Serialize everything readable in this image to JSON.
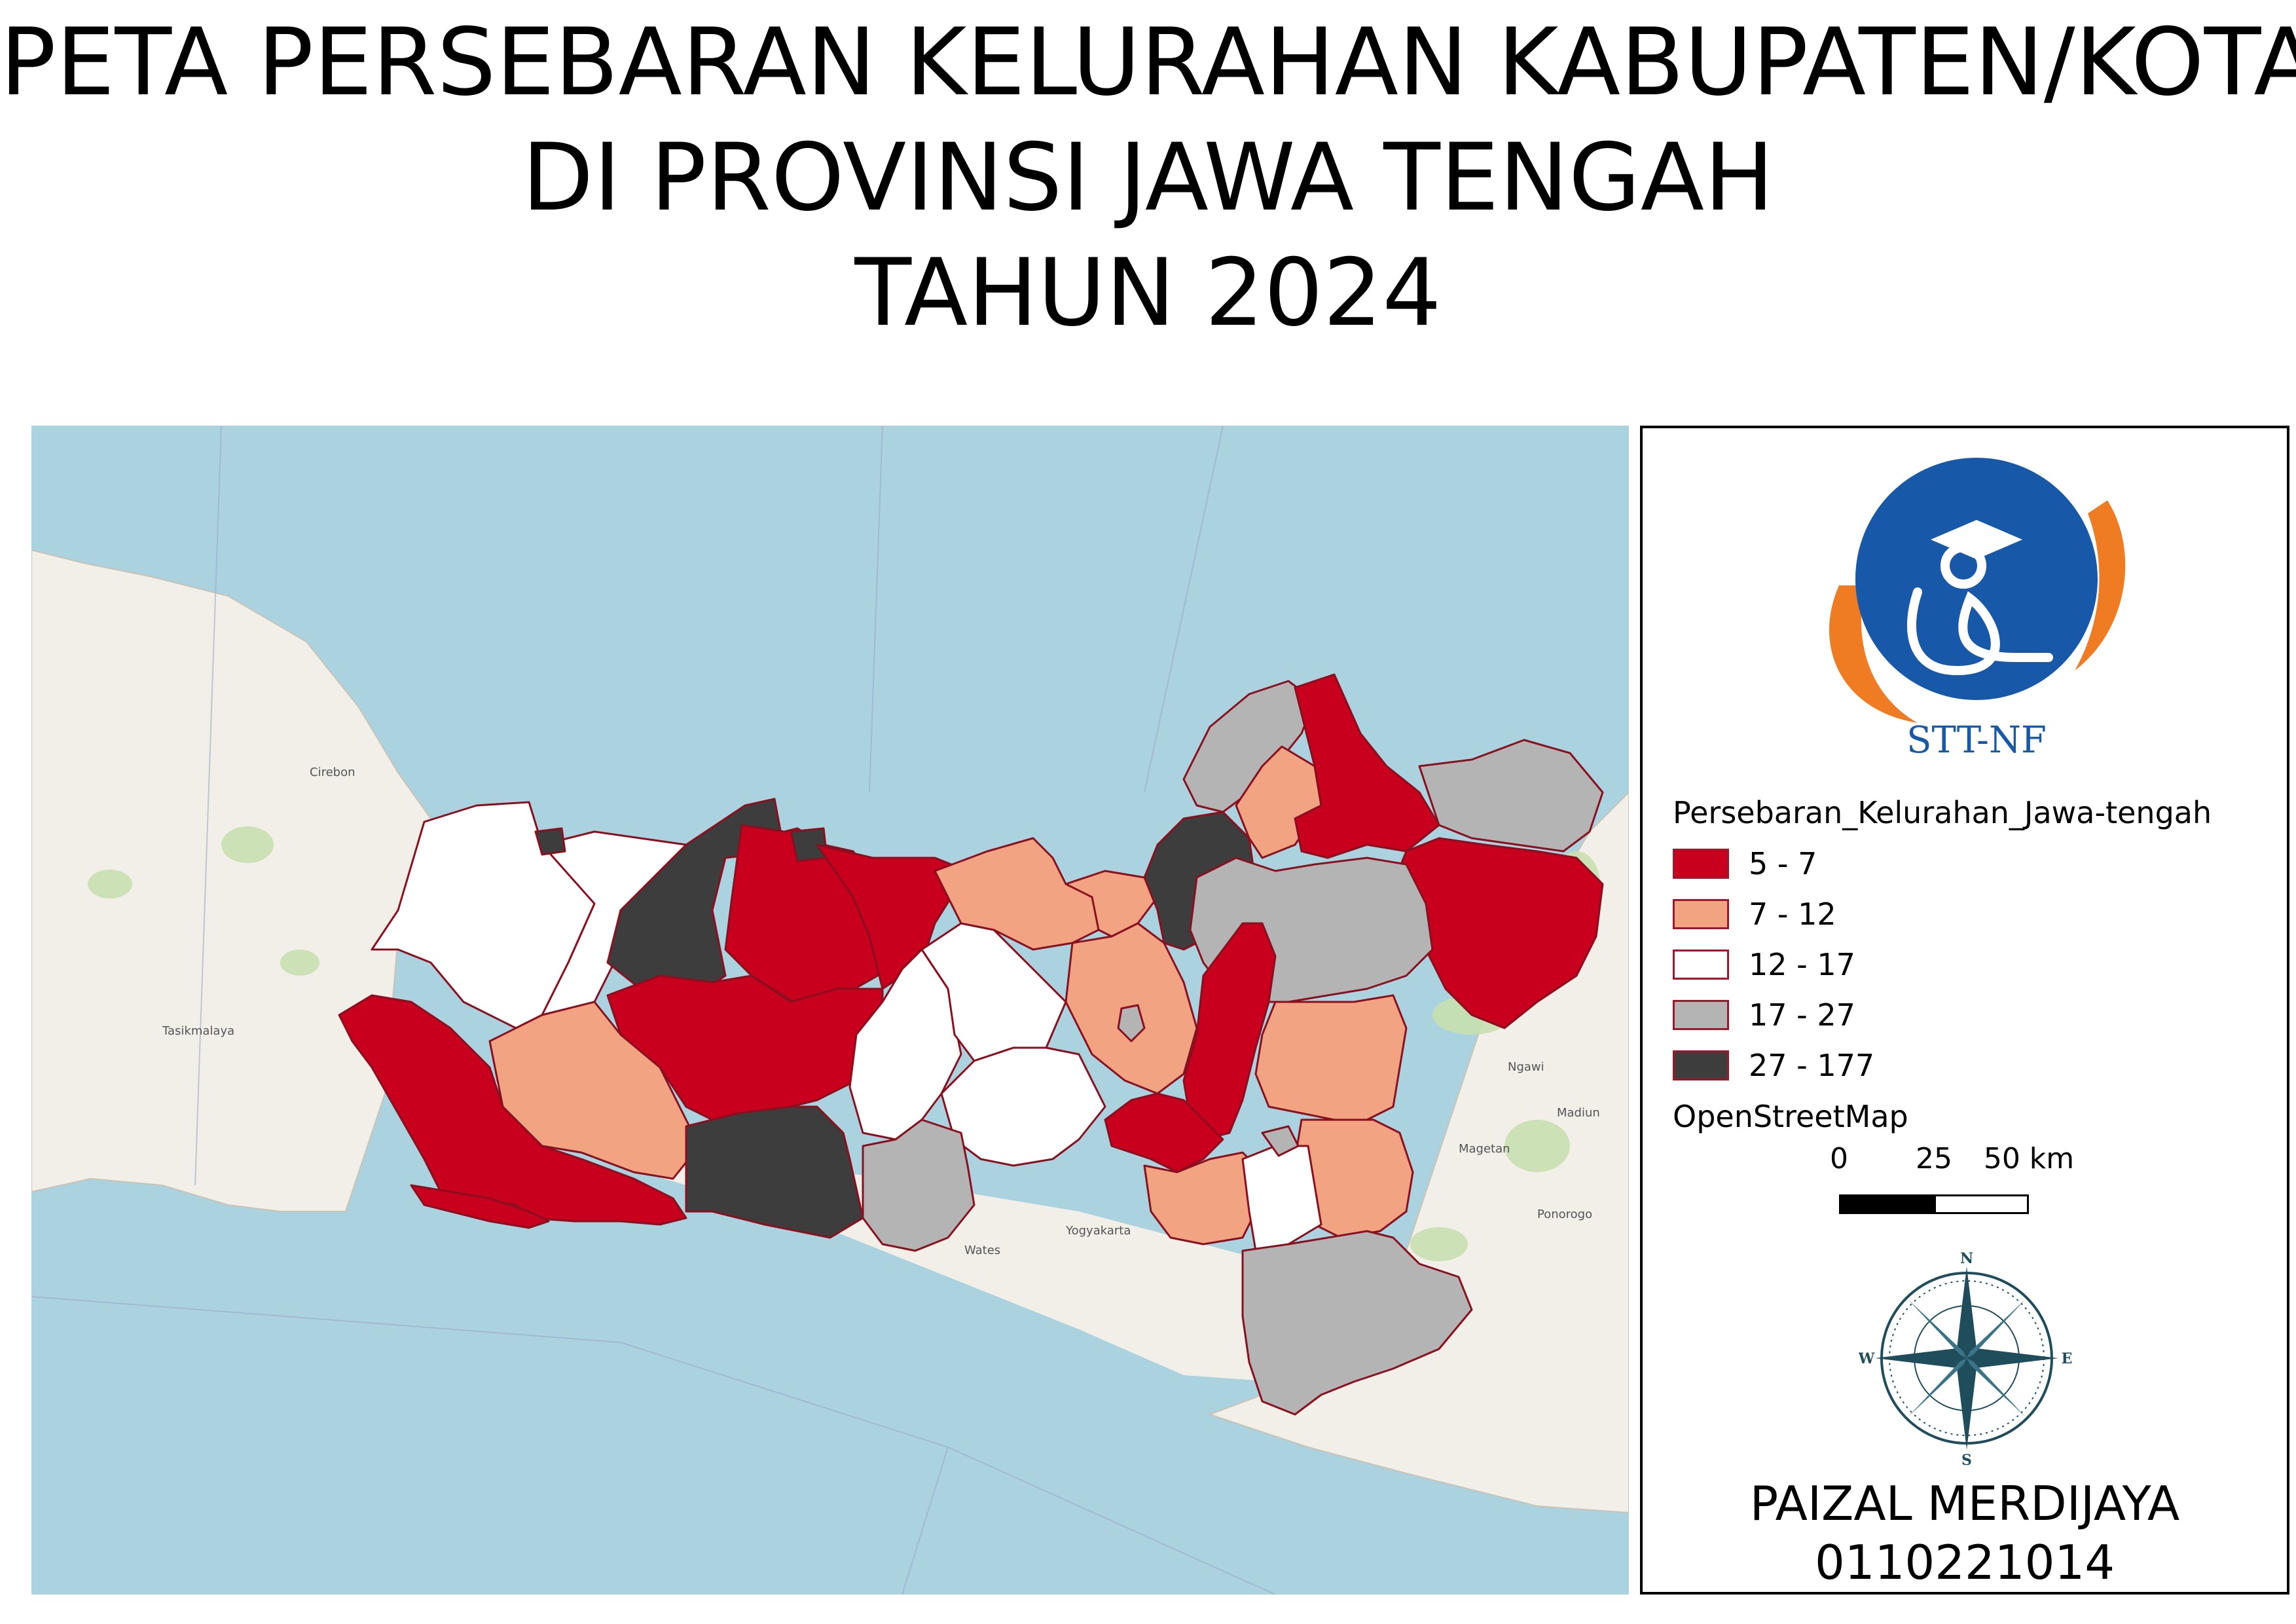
{
  "title": {
    "line1": "PETA PERSEBARAN KELURAHAN KABUPATEN/KOTA",
    "line2": "DI PROVINSI JAWA TENGAH",
    "line3": "TAHUN 2024"
  },
  "logo": {
    "text": "STT-NF",
    "colors": {
      "circle": "#1758a8",
      "ring": "#ef7b22"
    }
  },
  "legend": {
    "title": "Persebaran_Kelurahan_Jawa-tengah",
    "classes": [
      {
        "label": "5 - 7",
        "color": "#c8001e"
      },
      {
        "label": "7 - 12",
        "color": "#f2a482"
      },
      {
        "label": "12 - 17",
        "color": "#ffffff"
      },
      {
        "label": "17 - 27",
        "color": "#b4b4b4"
      },
      {
        "label": "27 - 177",
        "color": "#3d3d3d"
      }
    ],
    "basemap": "OpenStreetMap"
  },
  "scale": {
    "ticks": [
      "0",
      "25",
      "50 km"
    ]
  },
  "compass": {
    "n": "N",
    "s": "S",
    "e": "E",
    "w": "W"
  },
  "author": {
    "name": "PAIZAL MERDIJAYA",
    "id": "0110221014"
  },
  "map_labels": {
    "cirebon": "Cirebon",
    "tasikmalaya": "Tasikmalaya",
    "yogyakarta": "Yogyakarta",
    "ngawi": "Ngawi",
    "madiun": "Madiun",
    "ponorogo": "Ponorogo",
    "magetan": "Magetan",
    "wates": "Wates"
  },
  "colors": {
    "sea": "#aad3df",
    "land": "#f2efe9",
    "boundary": "#8a1020"
  }
}
